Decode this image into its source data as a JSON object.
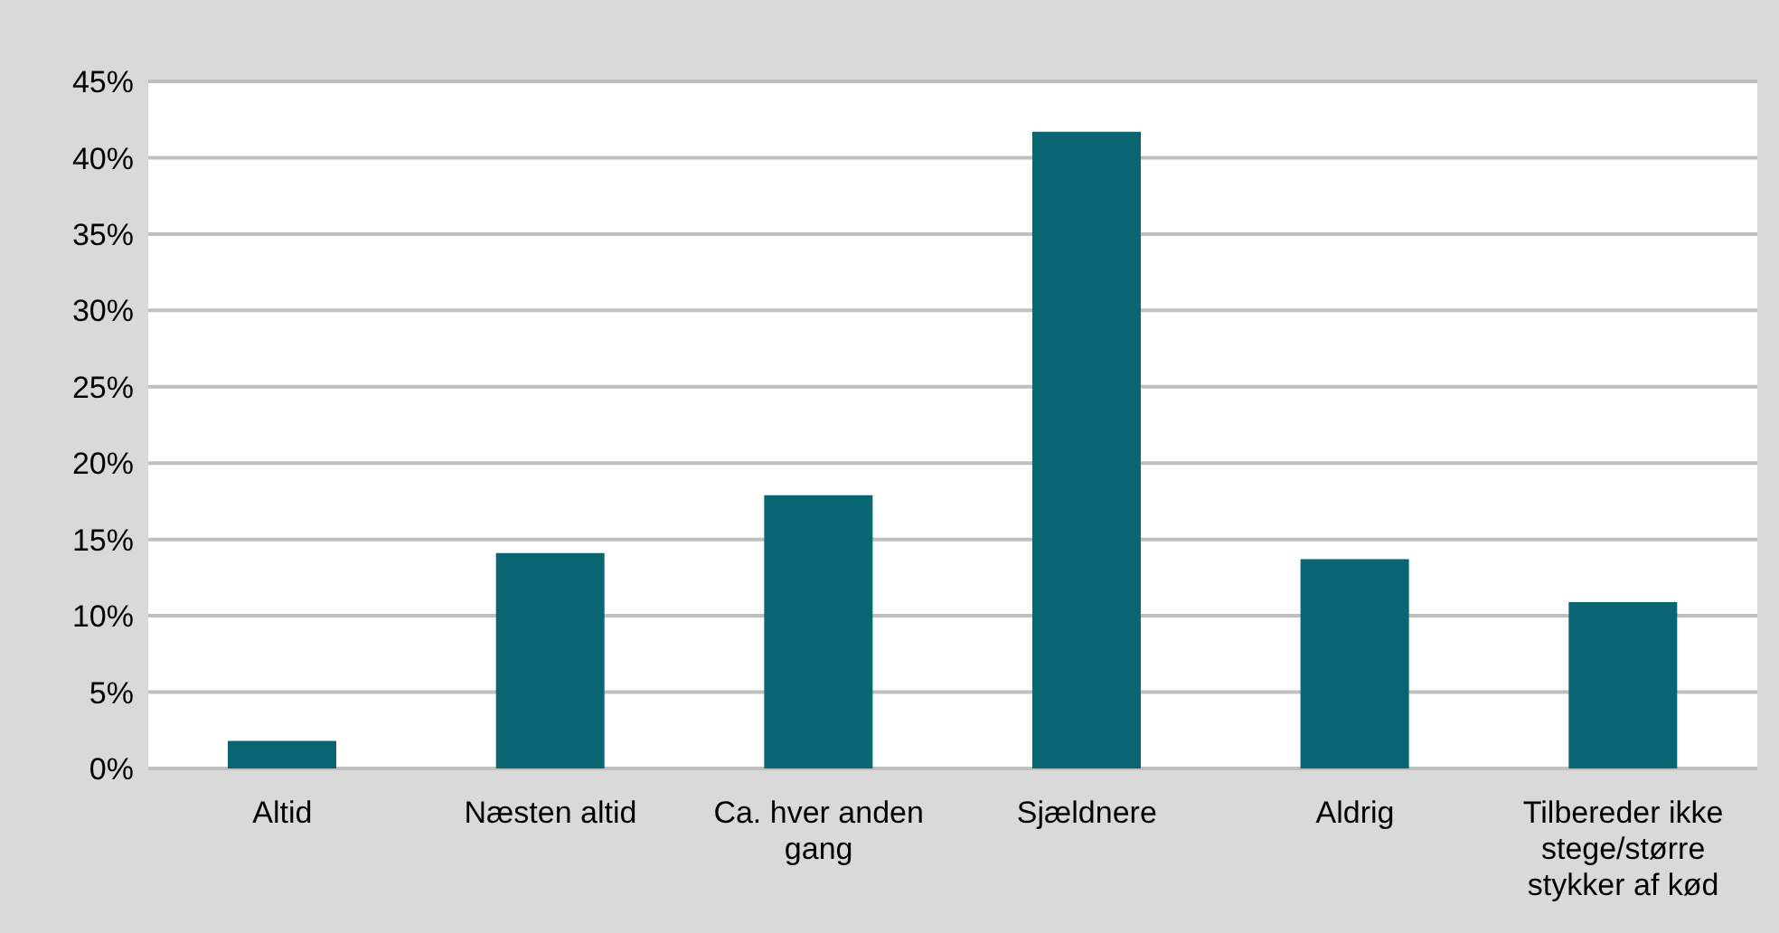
{
  "chart_data": {
    "type": "bar",
    "categories": [
      "Altid",
      "Næsten altid",
      "Ca. hver anden gang",
      "Sjældnere",
      "Aldrig",
      "Tilbereder ikke stege/større stykker af kød"
    ],
    "values": [
      1.8,
      14.1,
      17.9,
      41.7,
      13.7,
      10.9
    ],
    "color": "#0a6572",
    "ylim": [
      0,
      45
    ],
    "yticks": [
      {
        "value": 0,
        "label": "0%"
      },
      {
        "value": 5,
        "label": "5%"
      },
      {
        "value": 10,
        "label": "10%"
      },
      {
        "value": 15,
        "label": "15%"
      },
      {
        "value": 20,
        "label": "20%"
      },
      {
        "value": 25,
        "label": "25%"
      },
      {
        "value": 30,
        "label": "30%"
      },
      {
        "value": 35,
        "label": "35%"
      },
      {
        "value": 40,
        "label": "40%"
      },
      {
        "value": 45,
        "label": "45%"
      }
    ],
    "grid": "y",
    "legend": false
  }
}
